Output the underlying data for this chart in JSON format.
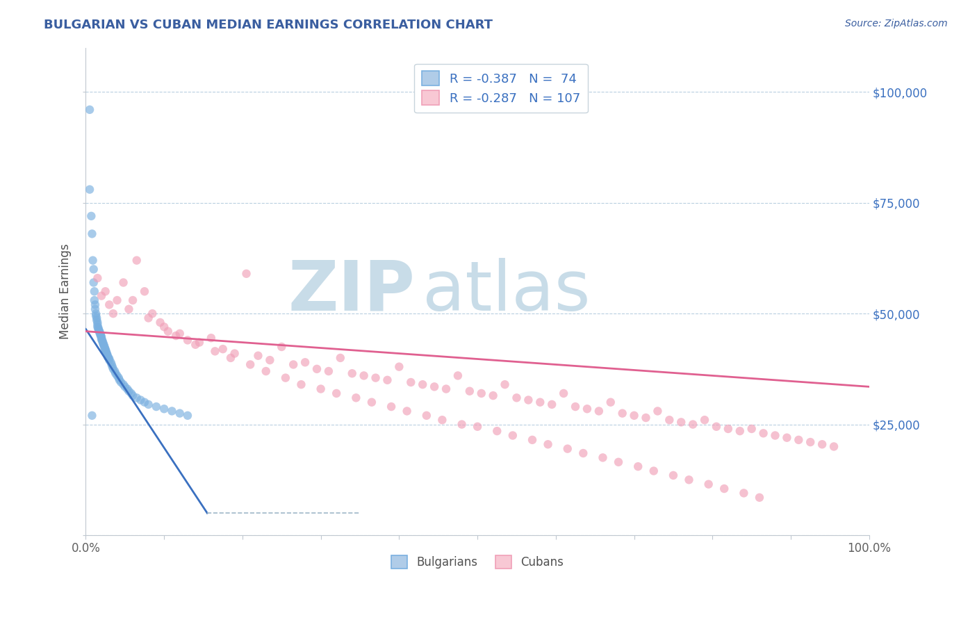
{
  "title": "BULGARIAN VS CUBAN MEDIAN EARNINGS CORRELATION CHART",
  "source_text": "Source: ZipAtlas.com",
  "ylabel": "Median Earnings",
  "bg_color": "#ffffff",
  "grid_color": "#b8cfe0",
  "title_color": "#3a5ea0",
  "source_color": "#3a5ea0",
  "watermark_zip": "ZIP",
  "watermark_atlas": "atlas",
  "watermark_color": "#c8dce8",
  "bulgarian_color": "#7ab0e0",
  "cuban_color": "#f0a0b8",
  "bulgarian_fill": "#b0cce8",
  "cuban_fill": "#f8c8d4",
  "R_bulgarian": -0.387,
  "N_bulgarian": 74,
  "R_cuban": -0.287,
  "N_cuban": 107,
  "xlim": [
    0,
    1.0
  ],
  "ylim": [
    0,
    110000
  ],
  "x_ticks": [
    0.0,
    0.1,
    0.2,
    0.3,
    0.4,
    0.5,
    0.6,
    0.7,
    0.8,
    0.9,
    1.0
  ],
  "x_tick_labels": [
    "0.0%",
    "",
    "",
    "",
    "",
    "",
    "",
    "",
    "",
    "",
    "100.0%"
  ],
  "y_ticks": [
    25000,
    50000,
    75000,
    100000
  ],
  "y_tick_labels_right": [
    "$25,000",
    "$50,000",
    "$75,000",
    "$100,000"
  ],
  "bulgarian_scatter_x": [
    0.005,
    0.005,
    0.007,
    0.008,
    0.009,
    0.01,
    0.01,
    0.011,
    0.011,
    0.012,
    0.012,
    0.013,
    0.013,
    0.014,
    0.014,
    0.015,
    0.015,
    0.015,
    0.016,
    0.016,
    0.017,
    0.017,
    0.018,
    0.018,
    0.019,
    0.019,
    0.02,
    0.02,
    0.02,
    0.021,
    0.021,
    0.022,
    0.022,
    0.023,
    0.023,
    0.024,
    0.024,
    0.025,
    0.025,
    0.026,
    0.026,
    0.027,
    0.027,
    0.028,
    0.028,
    0.029,
    0.03,
    0.03,
    0.032,
    0.033,
    0.034,
    0.035,
    0.037,
    0.038,
    0.04,
    0.042,
    0.043,
    0.045,
    0.048,
    0.05,
    0.053,
    0.055,
    0.058,
    0.06,
    0.065,
    0.07,
    0.075,
    0.08,
    0.09,
    0.1,
    0.11,
    0.12,
    0.13,
    0.008
  ],
  "bulgarian_scatter_y": [
    96000,
    78000,
    72000,
    68000,
    62000,
    60000,
    57000,
    55000,
    53000,
    52000,
    51000,
    50000,
    49500,
    49000,
    48500,
    48000,
    47500,
    47000,
    46800,
    46500,
    46200,
    46000,
    45800,
    45500,
    45200,
    45000,
    44800,
    44500,
    44200,
    44000,
    43800,
    43500,
    43200,
    43000,
    42800,
    42500,
    42200,
    42000,
    41800,
    41500,
    41200,
    41000,
    40800,
    40500,
    40200,
    40000,
    39800,
    39500,
    39000,
    38500,
    38000,
    37500,
    37000,
    36500,
    36000,
    35500,
    35000,
    34500,
    34000,
    33500,
    33000,
    32500,
    32000,
    31500,
    31000,
    30500,
    30000,
    29500,
    29000,
    28500,
    28000,
    27500,
    27000,
    27000
  ],
  "cuban_scatter_x": [
    0.015,
    0.02,
    0.025,
    0.03,
    0.035,
    0.04,
    0.048,
    0.055,
    0.065,
    0.075,
    0.085,
    0.095,
    0.105,
    0.115,
    0.13,
    0.145,
    0.16,
    0.175,
    0.19,
    0.205,
    0.22,
    0.235,
    0.25,
    0.265,
    0.28,
    0.295,
    0.31,
    0.325,
    0.34,
    0.355,
    0.37,
    0.385,
    0.4,
    0.415,
    0.43,
    0.445,
    0.46,
    0.475,
    0.49,
    0.505,
    0.52,
    0.535,
    0.55,
    0.565,
    0.58,
    0.595,
    0.61,
    0.625,
    0.64,
    0.655,
    0.67,
    0.685,
    0.7,
    0.715,
    0.73,
    0.745,
    0.76,
    0.775,
    0.79,
    0.805,
    0.82,
    0.835,
    0.85,
    0.865,
    0.88,
    0.895,
    0.91,
    0.925,
    0.94,
    0.955,
    0.06,
    0.08,
    0.1,
    0.12,
    0.14,
    0.165,
    0.185,
    0.21,
    0.23,
    0.255,
    0.275,
    0.3,
    0.32,
    0.345,
    0.365,
    0.39,
    0.41,
    0.435,
    0.455,
    0.48,
    0.5,
    0.525,
    0.545,
    0.57,
    0.59,
    0.615,
    0.635,
    0.66,
    0.68,
    0.705,
    0.725,
    0.75,
    0.77,
    0.795,
    0.815,
    0.84,
    0.86
  ],
  "cuban_scatter_y": [
    58000,
    54000,
    55000,
    52000,
    50000,
    53000,
    57000,
    51000,
    62000,
    55000,
    50000,
    48000,
    46000,
    45000,
    44000,
    43500,
    44500,
    42000,
    41000,
    59000,
    40500,
    39500,
    42500,
    38500,
    39000,
    37500,
    37000,
    40000,
    36500,
    36000,
    35500,
    35000,
    38000,
    34500,
    34000,
    33500,
    33000,
    36000,
    32500,
    32000,
    31500,
    34000,
    31000,
    30500,
    30000,
    29500,
    32000,
    29000,
    28500,
    28000,
    30000,
    27500,
    27000,
    26500,
    28000,
    26000,
    25500,
    25000,
    26000,
    24500,
    24000,
    23500,
    24000,
    23000,
    22500,
    22000,
    21500,
    21000,
    20500,
    20000,
    53000,
    49000,
    47000,
    45500,
    43000,
    41500,
    40000,
    38500,
    37000,
    35500,
    34000,
    33000,
    32000,
    31000,
    30000,
    29000,
    28000,
    27000,
    26000,
    25000,
    24500,
    23500,
    22500,
    21500,
    20500,
    19500,
    18500,
    17500,
    16500,
    15500,
    14500,
    13500,
    12500,
    11500,
    10500,
    9500,
    8500
  ],
  "bulgarian_line_x": [
    0.0,
    0.155
  ],
  "bulgarian_line_y": [
    46500,
    5000
  ],
  "cuban_line_x": [
    0.0,
    1.0
  ],
  "cuban_line_y": [
    46000,
    33500
  ],
  "dashed_line_x": [
    0.155,
    0.35
  ],
  "dashed_line_y": [
    5000,
    5000
  ],
  "legend_label1": "Bulgarians",
  "legend_label2": "Cubans"
}
